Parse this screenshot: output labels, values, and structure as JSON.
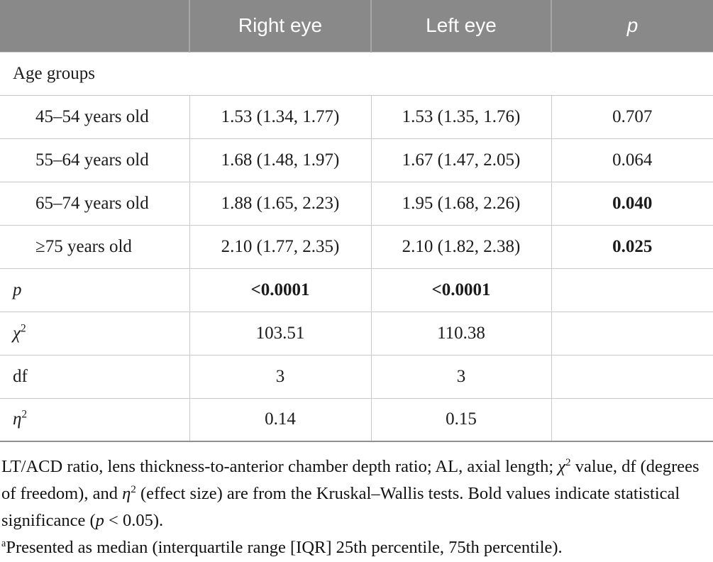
{
  "table": {
    "header": {
      "empty": "",
      "right_eye": "Right eye",
      "left_eye": "Left eye",
      "p": "p"
    },
    "section_label": "Age groups",
    "age_rows": [
      {
        "label": "45–54 years old",
        "right_eye": "1.53 (1.34, 1.77)",
        "left_eye": "1.53 (1.35, 1.76)",
        "p": "0.707"
      },
      {
        "label": "55–64 years old",
        "right_eye": "1.68 (1.48, 1.97)",
        "left_eye": "1.67 (1.47, 2.05)",
        "p": "0.064"
      },
      {
        "label": "65–74 years old",
        "right_eye": "1.88 (1.65, 2.23)",
        "left_eye": "1.95 (1.68, 2.26)",
        "p": "0.040"
      },
      {
        "label": "≥75 years old",
        "right_eye": "2.10 (1.77, 2.35)",
        "left_eye": "2.10 (1.82, 2.38)",
        "p": "0.025"
      }
    ],
    "stat_rows": {
      "p": {
        "label": "p",
        "right_eye": "<0.0001",
        "left_eye": "<0.0001",
        "p": ""
      },
      "chi2": {
        "label_symbol": "χ",
        "label_sup": "2",
        "right_eye": "103.51",
        "left_eye": "110.38",
        "p": ""
      },
      "df": {
        "label": "df",
        "right_eye": "3",
        "left_eye": "3",
        "p": ""
      },
      "eta2": {
        "label_symbol": "η",
        "label_sup": "2",
        "right_eye": "0.14",
        "left_eye": "0.15",
        "p": ""
      }
    }
  },
  "footnotes": {
    "main": {
      "part1": "LT/ACD ratio, lens thickness-to-anterior chamber depth ratio; AL, axial length; ",
      "chi": "χ",
      "chi_sup": "2",
      "part2": " value, df (degrees of freedom), and ",
      "eta": "η",
      "eta_sup": "2",
      "part3": " (effect size) are from the Kruskal–Wallis tests. Bold values indicate statistical significance (",
      "p": "p",
      "part4": " < 0.05)."
    },
    "secondary": {
      "marker": "a",
      "text": "Presented as median (interquartile range [IQR] 25th percentile, 75th percentile)."
    }
  },
  "colors": {
    "header_bg": "#898989",
    "header_text": "#ffffff",
    "header_divider": "#a7a7a7",
    "body_border": "#c9c9c9",
    "bottom_border": "#919191",
    "text": "#1b1b1b"
  }
}
